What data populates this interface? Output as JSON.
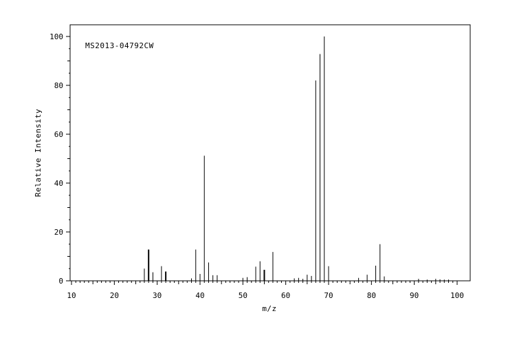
{
  "chart_data": {
    "type": "bar",
    "subtype": "mass-spectrum-stick",
    "title": "MS2013-04792CW",
    "xlabel": "m/z",
    "ylabel": "Relative Intensity",
    "xlim": [
      10,
      100
    ],
    "ylim": [
      0,
      100
    ],
    "xticks": [
      10,
      20,
      30,
      40,
      50,
      60,
      70,
      80,
      90,
      100
    ],
    "yticks": [
      0,
      20,
      40,
      60,
      80,
      100
    ],
    "grid": false,
    "legend": "none",
    "color": "#000000",
    "x": [
      27,
      28,
      29,
      31,
      32,
      38,
      39,
      40,
      41,
      42,
      43,
      44,
      50,
      51,
      53,
      54,
      55,
      57,
      62,
      63,
      64,
      65,
      66,
      67,
      68,
      69,
      70,
      77,
      79,
      81,
      82,
      83,
      91,
      93,
      95,
      96,
      97,
      98
    ],
    "values": [
      5.0,
      12.8,
      3.5,
      6.0,
      3.8,
      1.0,
      12.8,
      2.8,
      51.2,
      7.5,
      2.3,
      2.3,
      1.2,
      1.5,
      5.8,
      8.0,
      4.5,
      11.8,
      1.0,
      1.2,
      0.8,
      2.5,
      2.0,
      82.0,
      92.8,
      100.0,
      6.0,
      1.2,
      2.5,
      6.2,
      15.0,
      1.8,
      0.8,
      0.5,
      0.8,
      0.6,
      0.5,
      0.5
    ]
  }
}
